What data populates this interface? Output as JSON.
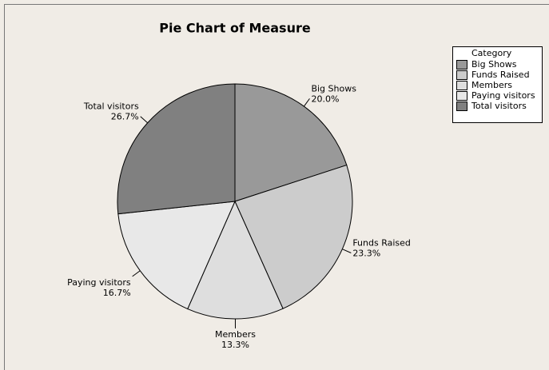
{
  "chart_data": {
    "type": "pie",
    "title": "Pie Chart of Measure",
    "legend_title": "Category",
    "categories": [
      "Big Shows",
      "Funds Raised",
      "Members",
      "Paying visitors",
      "Total visitors"
    ],
    "values": [
      20.0,
      23.3,
      13.3,
      16.7,
      26.7
    ],
    "value_labels": [
      "20.0%",
      "23.3%",
      "13.3%",
      "16.7%",
      "26.7%"
    ],
    "colors": [
      "#999999",
      "#cccccc",
      "#dedede",
      "#e8e8e8",
      "#808080"
    ],
    "legend": "upper right"
  }
}
